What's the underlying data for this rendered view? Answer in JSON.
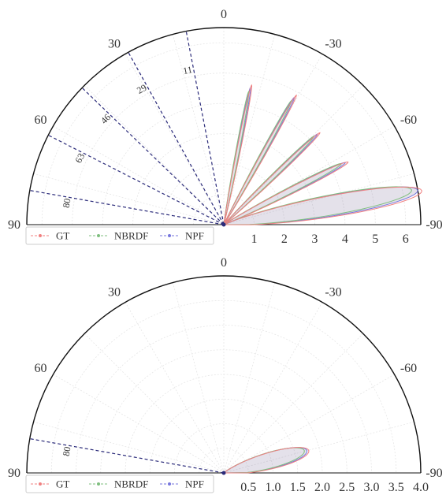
{
  "chart_data": [
    {
      "type": "polar-halfplane",
      "angle_ticks": [
        "0",
        "30",
        "-30",
        "60",
        "-60",
        "90",
        "-90"
      ],
      "incident_angles": [
        {
          "label": "11",
          "deg": 11
        },
        {
          "label": "29",
          "deg": 29
        },
        {
          "label": "46",
          "deg": 46
        },
        {
          "label": "63",
          "deg": 63
        },
        {
          "label": "80",
          "deg": 80
        }
      ],
      "radial_ticks": [
        "1",
        "2",
        "3",
        "4",
        "5",
        "6"
      ],
      "radial_values": [
        1,
        2,
        3,
        4,
        5,
        6
      ],
      "rmax": 6.5,
      "legend": [
        "GT",
        "NBRDF",
        "NPF"
      ],
      "lobes": [
        {
          "center": -11,
          "halfwidth": 1.2,
          "peak": 4.6,
          "tail": 0.6
        },
        {
          "center": -29,
          "halfwidth": 1.3,
          "peak": 4.8,
          "tail": 0.6
        },
        {
          "center": -46,
          "halfwidth": 1.6,
          "peak": 4.3,
          "tail": 0.7
        },
        {
          "center": -63,
          "halfwidth": 2.2,
          "peak": 4.5,
          "tail": 1.1
        },
        {
          "center": -80,
          "halfwidth": 5.0,
          "peak": 6.5,
          "tail": 1.6
        }
      ]
    },
    {
      "type": "polar-halfplane",
      "angle_ticks": [
        "0",
        "30",
        "-30",
        "60",
        "-60",
        "90",
        "-90"
      ],
      "incident_angles": [
        {
          "label": "80",
          "deg": 80
        }
      ],
      "radial_ticks": [
        "0.5",
        "1.0",
        "1.5",
        "2.0",
        "2.5",
        "3.0",
        "3.5",
        "4.0"
      ],
      "radial_values": [
        0.5,
        1.0,
        1.5,
        2.0,
        2.5,
        3.0,
        3.5,
        4.0
      ],
      "rmax": 4.0,
      "legend": [
        "GT",
        "NBRDF",
        "NPF"
      ],
      "lobes": [
        {
          "center": -75,
          "halfwidth": 9,
          "peak": 1.75,
          "tail": 1.2
        }
      ]
    }
  ],
  "colors": {
    "gt": "#f08080",
    "nbrdf": "#7fbf7f",
    "npf": "#7777dd",
    "incident": "#2b2b7a",
    "fill": "#6a5a8a"
  }
}
